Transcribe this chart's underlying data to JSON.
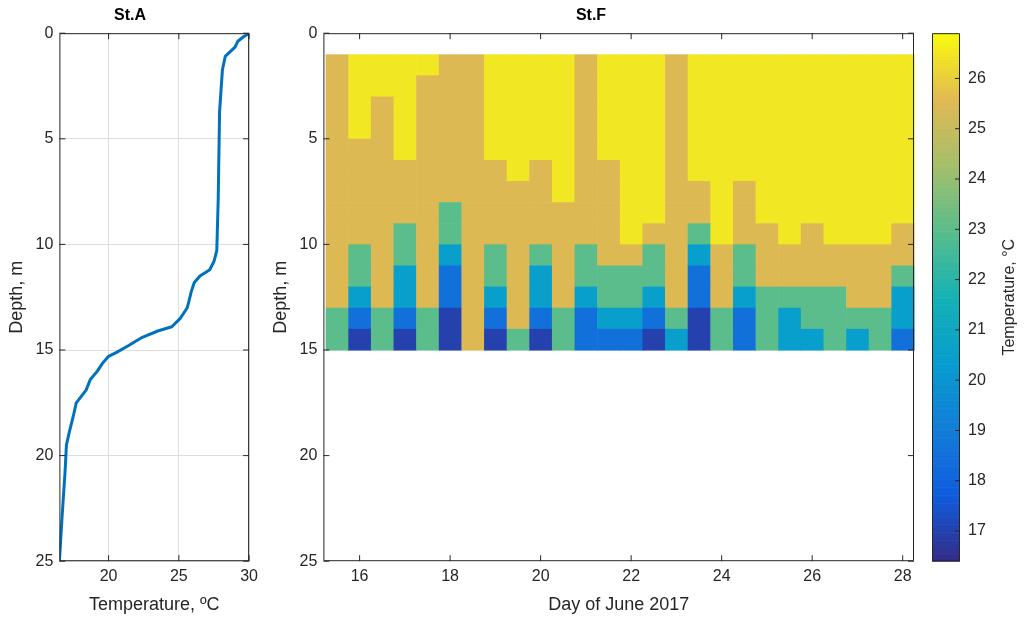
{
  "chart_data": [
    {
      "type": "line",
      "title": "St.A",
      "xlabel": "Temperature, ºC",
      "ylabel": "Depth, m",
      "color": "#0072bd",
      "grid": true,
      "x": [
        29.9,
        29.6,
        29.2,
        29.0,
        28.6,
        28.3,
        28.1,
        27.9,
        27.8,
        27.7,
        27.5,
        27.2,
        26.5,
        26.1,
        25.9,
        25.6,
        25.1,
        24.5,
        23.5,
        22.4,
        21.4,
        20.6,
        20.0,
        19.6,
        19.2,
        18.7,
        18.4,
        17.7,
        17.5,
        17.2,
        17.0,
        16.9,
        16.7,
        16.5
      ],
      "values": [
        0.05,
        0.17,
        0.38,
        0.66,
        0.91,
        1.1,
        1.74,
        3.7,
        7.9,
        10.3,
        10.8,
        11.2,
        11.5,
        11.8,
        12.2,
        13.0,
        13.5,
        13.9,
        14.1,
        14.4,
        14.8,
        15.1,
        15.3,
        15.6,
        16.0,
        16.4,
        16.9,
        17.5,
        18.1,
        18.9,
        19.5,
        20.8,
        22.8,
        25.0
      ],
      "xlim": [
        16.5,
        30
      ],
      "xticks": [
        20,
        25,
        30
      ],
      "ylim": [
        25,
        0
      ],
      "yticks": [
        0,
        5,
        10,
        15,
        20,
        25
      ]
    },
    {
      "type": "heatmap",
      "title": "St.F",
      "xlabel": "Day of June 2017",
      "ylabel": "Depth, m",
      "clabel": "Temperature, °C",
      "x": [
        15.5,
        16,
        16.5,
        17,
        17.5,
        18,
        18.5,
        19,
        19.5,
        20,
        20.5,
        21,
        21.5,
        22,
        22.5,
        23,
        23.5,
        24,
        24.5,
        25,
        25.5,
        26,
        26.5,
        27,
        27.5,
        28
      ],
      "y": [
        1.5,
        2.5,
        3.5,
        4.5,
        5.5,
        6.5,
        7.5,
        8.5,
        9.5,
        10.5,
        11.5,
        12.5,
        13.5,
        14.5
      ],
      "cells": [
        [
          25.5,
          26.5,
          26.5,
          26.5,
          26.5,
          25.5,
          25.5,
          26.5,
          26.5,
          26.5,
          26.5,
          25.5,
          26.5,
          26.5,
          26.5,
          25.5,
          26.5,
          26.5,
          26.5,
          26.5,
          26.5,
          26.5,
          26.5,
          26.5,
          26.5,
          26.5
        ],
        [
          25.5,
          26.5,
          26.5,
          26.5,
          25.5,
          25.5,
          25.5,
          26.5,
          26.5,
          26.5,
          26.5,
          25.5,
          26.5,
          26.5,
          26.5,
          25.5,
          26.5,
          26.5,
          26.5,
          26.5,
          26.5,
          26.5,
          26.5,
          26.5,
          26.5,
          26.5
        ],
        [
          25.5,
          26.5,
          25.5,
          26.5,
          25.5,
          25.5,
          25.5,
          26.5,
          26.5,
          26.5,
          26.5,
          25.5,
          26.5,
          26.5,
          26.5,
          25.5,
          26.5,
          26.5,
          26.5,
          26.5,
          26.5,
          26.5,
          26.5,
          26.5,
          26.5,
          26.5
        ],
        [
          25.5,
          26.5,
          25.5,
          26.5,
          25.5,
          25.5,
          25.5,
          26.5,
          26.5,
          26.5,
          26.5,
          25.5,
          26.5,
          26.5,
          26.5,
          25.5,
          26.5,
          26.5,
          26.5,
          26.5,
          26.5,
          26.5,
          26.5,
          26.5,
          26.5,
          26.5
        ],
        [
          25.5,
          25.5,
          25.5,
          26.5,
          25.5,
          25.5,
          25.5,
          26.5,
          26.5,
          26.5,
          26.5,
          25.5,
          26.5,
          26.5,
          26.5,
          25.5,
          26.5,
          26.5,
          26.5,
          26.5,
          26.5,
          26.5,
          26.5,
          26.5,
          26.5,
          26.5
        ],
        [
          25.5,
          25.5,
          25.5,
          25.5,
          25.5,
          25.5,
          25.5,
          25.5,
          26.5,
          25.5,
          26.5,
          25.5,
          25.5,
          26.5,
          26.5,
          25.5,
          26.5,
          26.5,
          26.5,
          26.5,
          26.5,
          26.5,
          26.5,
          26.5,
          26.5,
          26.5
        ],
        [
          25.5,
          25.5,
          25.5,
          25.5,
          25.5,
          25.5,
          25.5,
          25.5,
          25.5,
          25.5,
          26.5,
          25.5,
          25.5,
          26.5,
          26.5,
          25.5,
          25.5,
          26.5,
          25.5,
          26.5,
          26.5,
          26.5,
          26.5,
          26.5,
          26.5,
          26.5
        ],
        [
          25.5,
          25.5,
          25.5,
          25.5,
          25.5,
          23,
          25.5,
          25.5,
          25.5,
          25.5,
          25.5,
          25.5,
          25.5,
          26.5,
          26.5,
          25.5,
          25.5,
          26.5,
          25.5,
          26.5,
          26.5,
          26.5,
          26.5,
          26.5,
          26.5,
          26.5
        ],
        [
          25.5,
          25.5,
          25.5,
          23,
          25.5,
          23,
          25.5,
          25.5,
          25.5,
          25.5,
          25.5,
          25.5,
          25.5,
          26.5,
          25.5,
          25.5,
          23,
          26.5,
          25.5,
          25.5,
          26.5,
          25.5,
          26.5,
          26.5,
          26.5,
          25.5
        ],
        [
          25.5,
          23,
          25.5,
          23,
          25.5,
          20.5,
          25.5,
          23,
          25.5,
          23,
          25.5,
          23,
          25.5,
          25.5,
          23,
          25.5,
          20.5,
          25.5,
          23,
          25.5,
          25.5,
          25.5,
          25.5,
          25.5,
          25.5,
          25.5
        ],
        [
          25.5,
          23,
          25.5,
          20.5,
          25.5,
          18.5,
          25.5,
          23,
          25.5,
          20.5,
          25.5,
          23,
          23,
          23,
          23,
          25.5,
          18.5,
          25.5,
          23,
          25.5,
          25.5,
          25.5,
          25.5,
          25.5,
          25.5,
          23
        ],
        [
          25.5,
          20.5,
          25.5,
          20.5,
          25.5,
          18.5,
          25.5,
          20.5,
          25.5,
          20.5,
          25.5,
          20.5,
          23,
          23,
          20.5,
          25.5,
          18.5,
          25.5,
          20.5,
          23,
          23,
          23,
          23,
          25.5,
          25.5,
          20.5
        ],
        [
          23,
          18.5,
          23,
          18.5,
          23,
          17,
          25.5,
          18.5,
          25.5,
          18.5,
          23,
          18.5,
          20.5,
          20.5,
          18.5,
          23,
          17,
          23,
          18.5,
          23,
          20.5,
          23,
          23,
          23,
          23,
          20.5
        ],
        [
          23,
          17,
          23,
          17,
          23,
          17,
          25.5,
          17,
          23,
          17,
          23,
          18.5,
          18.5,
          18.5,
          17,
          20.5,
          17,
          23,
          18.5,
          23,
          20.5,
          20.5,
          23,
          20.5,
          23,
          18.5
        ]
      ],
      "xlim": [
        15.2,
        28.25
      ],
      "xticks": [
        16,
        18,
        20,
        22,
        24,
        26,
        28
      ],
      "ylim": [
        25,
        0
      ],
      "yticks": [
        0,
        5,
        10,
        15,
        20,
        25
      ],
      "clim": [
        16.4,
        26.9
      ],
      "cticks": [
        17,
        18,
        19,
        20,
        21,
        22,
        23,
        24,
        25,
        26
      ]
    }
  ]
}
